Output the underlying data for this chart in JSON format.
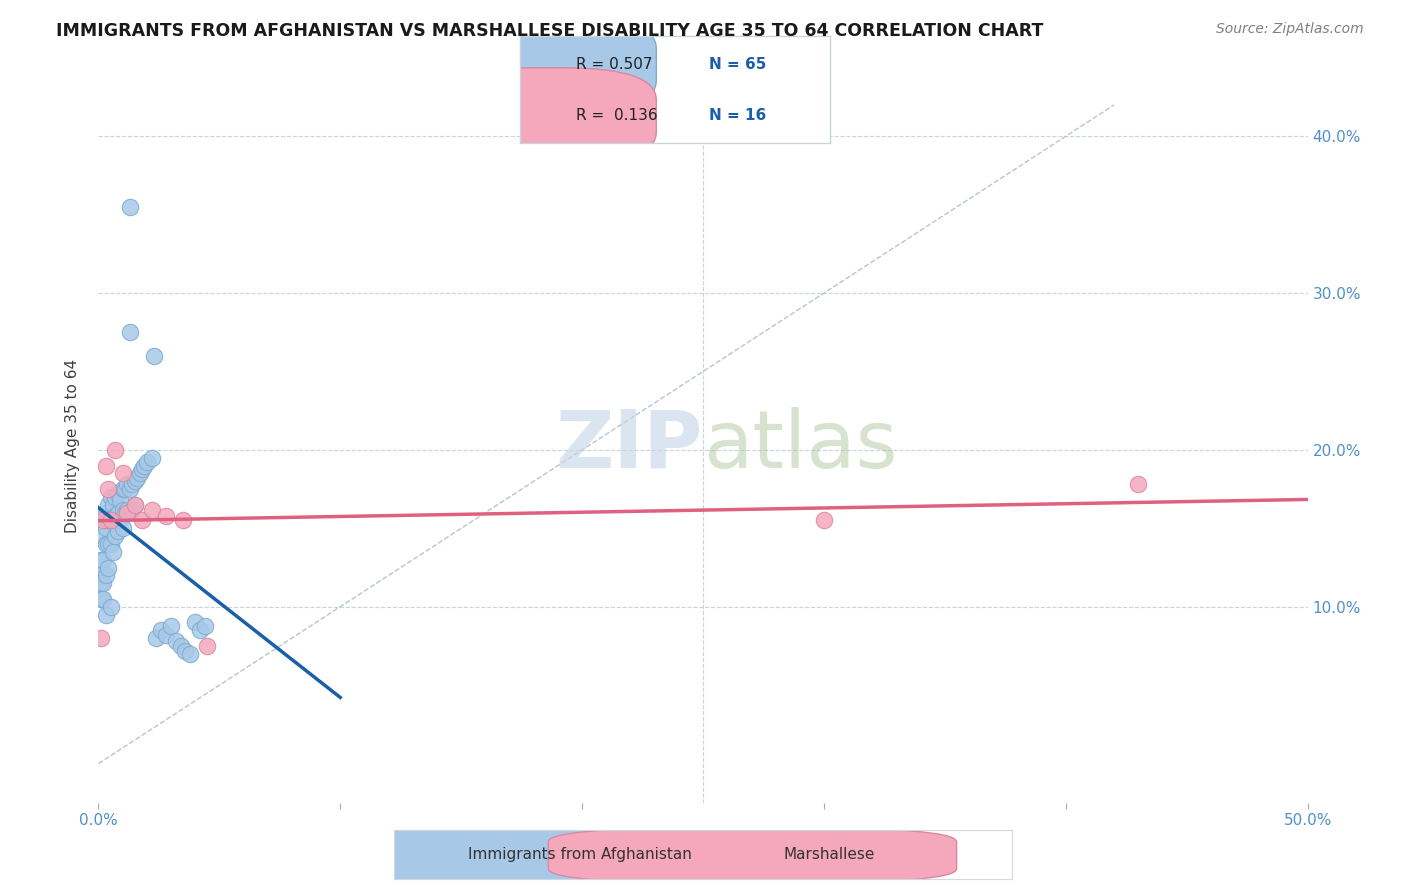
{
  "title": "IMMIGRANTS FROM AFGHANISTAN VS MARSHALLESE DISABILITY AGE 35 TO 64 CORRELATION CHART",
  "source": "Source: ZipAtlas.com",
  "ylabel": "Disability Age 35 to 64",
  "xlim": [
    0.0,
    0.5
  ],
  "ylim": [
    -0.025,
    0.43
  ],
  "r_afghanistan": 0.507,
  "n_afghanistan": 65,
  "r_marshallese": 0.136,
  "n_marshallese": 16,
  "afghanistan_color": "#a8c8e8",
  "marshallese_color": "#f5a8bc",
  "trend_afghanistan_color": "#1a5fa8",
  "trend_marshallese_color": "#e06080",
  "diagonal_color": "#b8c4cc",
  "background_color": "#ffffff",
  "af_x": [
    0.001,
    0.001,
    0.001,
    0.001,
    0.002,
    0.002,
    0.002,
    0.002,
    0.002,
    0.003,
    0.003,
    0.003,
    0.003,
    0.003,
    0.004,
    0.004,
    0.004,
    0.004,
    0.005,
    0.005,
    0.005,
    0.005,
    0.006,
    0.006,
    0.006,
    0.007,
    0.007,
    0.007,
    0.008,
    0.008,
    0.008,
    0.009,
    0.009,
    0.01,
    0.01,
    0.01,
    0.011,
    0.011,
    0.012,
    0.012,
    0.013,
    0.013,
    0.014,
    0.014,
    0.015,
    0.015,
    0.016,
    0.017,
    0.018,
    0.019,
    0.02,
    0.022,
    0.024,
    0.026,
    0.028,
    0.03,
    0.032,
    0.034,
    0.036,
    0.038,
    0.013,
    0.023,
    0.04,
    0.042,
    0.044
  ],
  "af_y": [
    0.13,
    0.12,
    0.115,
    0.105,
    0.155,
    0.145,
    0.13,
    0.115,
    0.105,
    0.16,
    0.15,
    0.14,
    0.12,
    0.095,
    0.165,
    0.155,
    0.14,
    0.125,
    0.17,
    0.155,
    0.14,
    0.1,
    0.165,
    0.155,
    0.135,
    0.17,
    0.158,
    0.145,
    0.172,
    0.16,
    0.148,
    0.168,
    0.155,
    0.175,
    0.162,
    0.15,
    0.175,
    0.16,
    0.178,
    0.162,
    0.355,
    0.175,
    0.178,
    0.162,
    0.18,
    0.165,
    0.182,
    0.185,
    0.188,
    0.19,
    0.192,
    0.195,
    0.08,
    0.085,
    0.082,
    0.088,
    0.078,
    0.075,
    0.072,
    0.07,
    0.275,
    0.26,
    0.09,
    0.085,
    0.088
  ],
  "ma_x": [
    0.001,
    0.002,
    0.003,
    0.004,
    0.005,
    0.007,
    0.01,
    0.012,
    0.015,
    0.018,
    0.022,
    0.028,
    0.035,
    0.045,
    0.3,
    0.43
  ],
  "ma_y": [
    0.08,
    0.155,
    0.19,
    0.175,
    0.155,
    0.2,
    0.185,
    0.16,
    0.165,
    0.155,
    0.162,
    0.158,
    0.155,
    0.075,
    0.155,
    0.178
  ]
}
